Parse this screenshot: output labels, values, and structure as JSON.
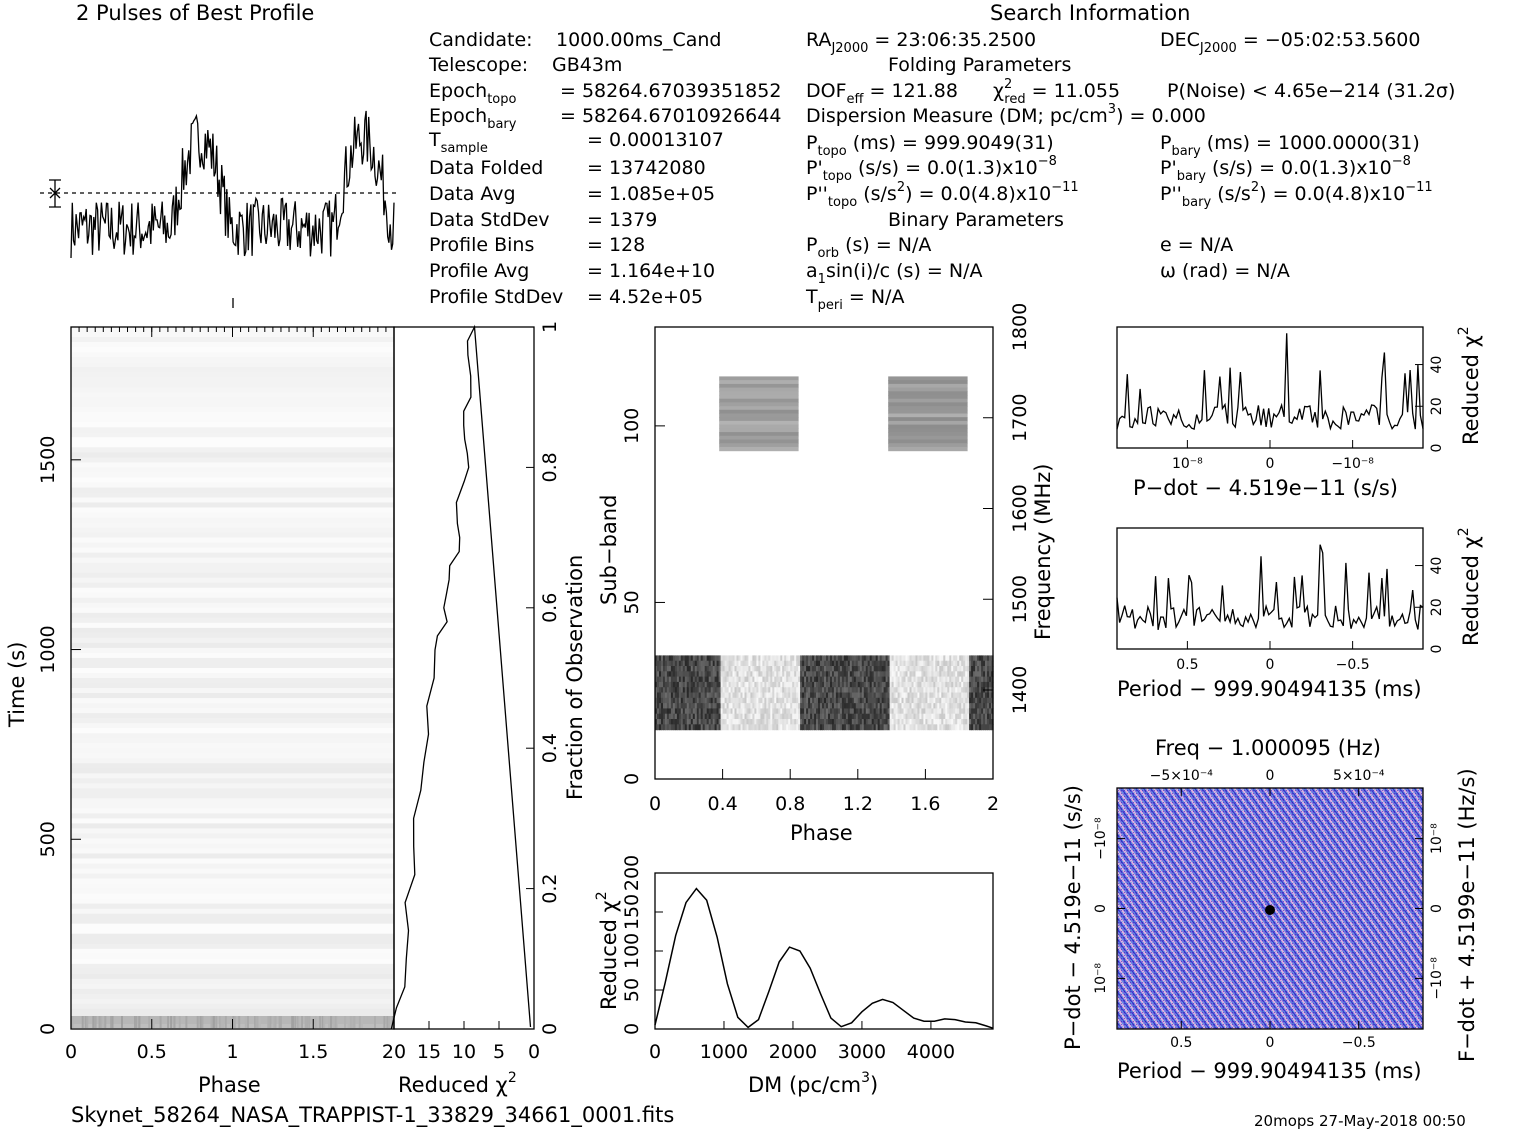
{
  "header": {
    "profile_title": "2 Pulses of Best Profile",
    "search_title": "Search Information",
    "filename": "Skynet_58264_NASA_TRAPPIST-1_33829_34661_0001.fits",
    "footer_right": "20mops 27-May-2018 00:50"
  },
  "info": {
    "candidate_label": "Candidate:",
    "candidate": "1000.00ms_Cand",
    "telescope_label": "Telescope:",
    "telescope": "GB43m",
    "epoch_topo": "58264.67039351852",
    "epoch_bary": "58264.67010926644",
    "t_sample": "0.00013107",
    "data_folded_label": "Data Folded",
    "data_folded": "13742080",
    "data_avg_label": "Data Avg",
    "data_avg": "1.085e+05",
    "data_stddev_label": "Data StdDev",
    "data_stddev": "1379",
    "profile_bins_label": "Profile Bins",
    "profile_bins": "128",
    "profile_avg_label": "Profile Avg",
    "profile_avg": "1.164e+10",
    "profile_stddev_label": "Profile StdDev",
    "profile_stddev": "4.52e+05",
    "ra": "= 23:06:35.2500",
    "dec": "= −05:02:53.5600",
    "folding_params": "Folding Parameters",
    "dof": "= 121.88",
    "chi2_red": "= 11.055",
    "p_noise": "P(Noise) < 4.65e−214   (31.2σ)",
    "dm_line": "Dispersion Measure (DM; pc/cm",
    "dm_value": ") = 0.000",
    "p_topo": "(ms) =  999.9049(31)",
    "p_bary": "(ms) =  1000.0000(31)",
    "pd_topo": "(s/s) = 0.0(1.3)x10",
    "pd_bary": "(s/s) = 0.0(1.3)x10",
    "pd_exp": "−8",
    "pdd_topo": "(s/s",
    "pdd_tail": ") = 0.0(4.8)x10",
    "pdd_exp": "−11",
    "binary_params": "Binary Parameters",
    "porb": "(s) = N/A",
    "e": "e = N/A",
    "a1sini": "sin(i)/c (s) = N/A",
    "omega": "ω (rad) = N/A",
    "tperi": "= N/A"
  },
  "axes": {
    "phase": "Phase",
    "time": "Time (s)",
    "reduced_chi2": "Reduced χ",
    "fraction_obs": "Fraction of Observation",
    "subband": "Sub−band",
    "frequency": "Frequency (MHz)",
    "dm_axis": "DM (pc/cm",
    "pdot_label": "P−dot − 4.519e−11 (s/s)",
    "period_label": "Period − 999.90494135 (ms)",
    "freq_label": "Freq − 1.000095 (Hz)",
    "fdot_label": "F−dot + 4.5199e−11 (Hz/s)"
  },
  "chart_data": [
    {
      "type": "line",
      "name_id": "profile",
      "x_range": [
        0,
        2
      ],
      "description_values": "noisy pulse profile, two rotations, 128 bins per rotation",
      "mean_line": true
    },
    {
      "type": "heatmap",
      "name_id": "time-phase",
      "xlabel": "Phase",
      "ylabel": "Time (s)",
      "xlim": [
        0,
        2
      ],
      "ylim": [
        0,
        1850
      ],
      "x_ticks": [
        0,
        0.5,
        1,
        1.5
      ],
      "y_ticks": [
        0,
        500,
        1000,
        1500
      ]
    },
    {
      "type": "line",
      "name_id": "time-chi2",
      "xlabel": "Reduced χ²",
      "ylabel": "Fraction of Observation",
      "xlim": [
        20,
        0
      ],
      "ylim": [
        0,
        1
      ],
      "x_ticks": [
        20,
        15,
        10,
        5,
        0
      ],
      "y_ticks": [
        0,
        0.2,
        0.4,
        0.6,
        0.8,
        1
      ],
      "x": [
        20.5,
        19.5,
        19,
        18.5,
        18.5,
        18,
        17.5,
        17.5,
        17,
        16.5,
        16,
        15.5,
        15,
        14.5,
        14,
        13.5,
        13,
        12.5,
        12,
        11.8,
        11.5,
        11.2,
        11,
        11.5,
        10.5,
        10,
        9.6,
        9.5,
        9.5,
        9.8,
        9.7,
        9.6,
        9.5,
        9.3,
        9.2,
        9.0
      ],
      "y": [
        0.0,
        0.03,
        0.06,
        0.1,
        0.14,
        0.18,
        0.22,
        0.26,
        0.3,
        0.34,
        0.38,
        0.42,
        0.46,
        0.5,
        0.54,
        0.56,
        0.58,
        0.6,
        0.62,
        0.64,
        0.66,
        0.68,
        0.7,
        0.72,
        0.75,
        0.78,
        0.8,
        0.82,
        0.84,
        0.86,
        0.88,
        0.9,
        0.93,
        0.96,
        0.98,
        1.0
      ]
    },
    {
      "type": "heatmap",
      "name_id": "subband-phase",
      "xlabel": "Phase",
      "ylabel": "Sub−band",
      "y2label": "Frequency (MHz)",
      "xlim": [
        0,
        2
      ],
      "ylim": [
        0,
        128
      ],
      "x_ticks": [
        0,
        0.4,
        0.8,
        1.2,
        1.6,
        2
      ],
      "y_ticks": [
        0,
        50,
        100
      ],
      "y2_ticks": [
        1400,
        1500,
        1600,
        1700,
        1800
      ],
      "bands": [
        {
          "sub_lo": 14,
          "sub_hi": 35,
          "kind": "dark-on-pulse"
        },
        {
          "sub_lo": 93,
          "sub_hi": 114,
          "kind": "grey-blocks"
        }
      ]
    },
    {
      "type": "line",
      "name_id": "dm-chi2",
      "xlabel": "DM (pc/cm³)",
      "ylabel": "Reduced χ²",
      "xlim": [
        0,
        4900
      ],
      "ylim": [
        0,
        200
      ],
      "x_ticks": [
        0,
        1000,
        2000,
        3000,
        4000
      ],
      "y_ticks": [
        0,
        50,
        100,
        150,
        200
      ],
      "x": [
        0,
        150,
        300,
        450,
        600,
        750,
        900,
        1050,
        1200,
        1350,
        1500,
        1650,
        1800,
        1950,
        2100,
        2250,
        2400,
        2550,
        2700,
        2850,
        3000,
        3150,
        3300,
        3450,
        3600,
        3750,
        3900,
        4050,
        4200,
        4350,
        4500,
        4650,
        4800,
        4900
      ],
      "y": [
        5,
        60,
        120,
        162,
        180,
        165,
        118,
        58,
        15,
        2,
        12,
        48,
        86,
        105,
        100,
        78,
        45,
        14,
        3,
        8,
        22,
        33,
        38,
        34,
        24,
        14,
        10,
        10,
        13,
        12,
        9,
        8,
        4,
        1
      ]
    },
    {
      "type": "line",
      "name_id": "pdot-chi2",
      "xlabel": "P−dot − 4.519e−11 (s/s)",
      "ylabel": "Reduced χ²",
      "x_ticks": [
        "10⁻⁸",
        "0",
        "−10⁻⁸"
      ],
      "y_ticks": [
        0,
        20,
        40
      ],
      "ylim": [
        0,
        58
      ],
      "peak": 55
    },
    {
      "type": "line",
      "name_id": "period-chi2",
      "xlabel": "Period − 999.90494135 (ms)",
      "ylabel": "Reduced χ²",
      "x_ticks": [
        "0.5",
        "0",
        "−0.5"
      ],
      "y_ticks": [
        0,
        20,
        40
      ],
      "ylim": [
        0,
        58
      ],
      "peak": 50
    },
    {
      "type": "heatmap",
      "name_id": "ppdot",
      "xlabel": "Period − 999.90494135 (ms)",
      "ylabel": "P−dot − 4.519e−11 (s/s)",
      "x2label": "Freq − 1.000095 (Hz)",
      "y2label": "F−dot + 4.5199e−11 (Hz/s)",
      "x_ticks": [
        "0.5",
        "0",
        "−0.5"
      ],
      "x2_ticks": [
        "−5×10⁻⁴",
        "0",
        "5×10⁻⁴"
      ],
      "y_ticks": [
        "10⁻⁸",
        "0",
        "−10⁻⁸"
      ],
      "y2_ticks": [
        "−10⁻⁸",
        "0",
        "10⁻⁸"
      ],
      "colors": [
        "#3a3ad8",
        "#8a8ae8",
        "#e8b8e0",
        "#40c8e0"
      ]
    }
  ]
}
